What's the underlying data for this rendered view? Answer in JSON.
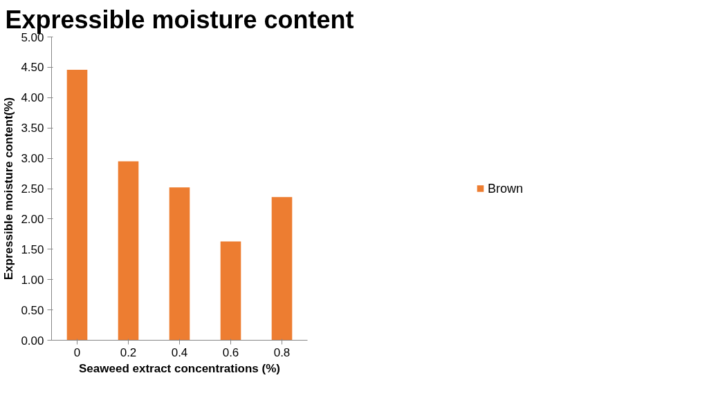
{
  "chart_data": {
    "type": "bar",
    "title": "Expressible moisture content",
    "xlabel": "Seaweed extract concentrations (%)",
    "ylabel": "Expressible moisture content(%)",
    "categories": [
      "0",
      "0.2",
      "0.4",
      "0.6",
      "0.8"
    ],
    "series": [
      {
        "name": "Brown",
        "color": "#ed7d31",
        "values": [
          4.46,
          2.95,
          2.52,
          1.63,
          2.36
        ]
      }
    ],
    "ylim": [
      0,
      5
    ],
    "yticks": [
      {
        "value": 0,
        "label": "0.00"
      },
      {
        "value": 0.5,
        "label": "0.50"
      },
      {
        "value": 1,
        "label": "1.00"
      },
      {
        "value": 1.5,
        "label": "1.50"
      },
      {
        "value": 2,
        "label": "2.00"
      },
      {
        "value": 2.5,
        "label": "2.50"
      },
      {
        "value": 3,
        "label": "3.00"
      },
      {
        "value": 3.5,
        "label": "3.50"
      },
      {
        "value": 4,
        "label": "4.00"
      },
      {
        "value": 4.5,
        "label": "4.50"
      },
      {
        "value": 5,
        "label": "5.00"
      }
    ],
    "grid": false,
    "legend": "right"
  }
}
